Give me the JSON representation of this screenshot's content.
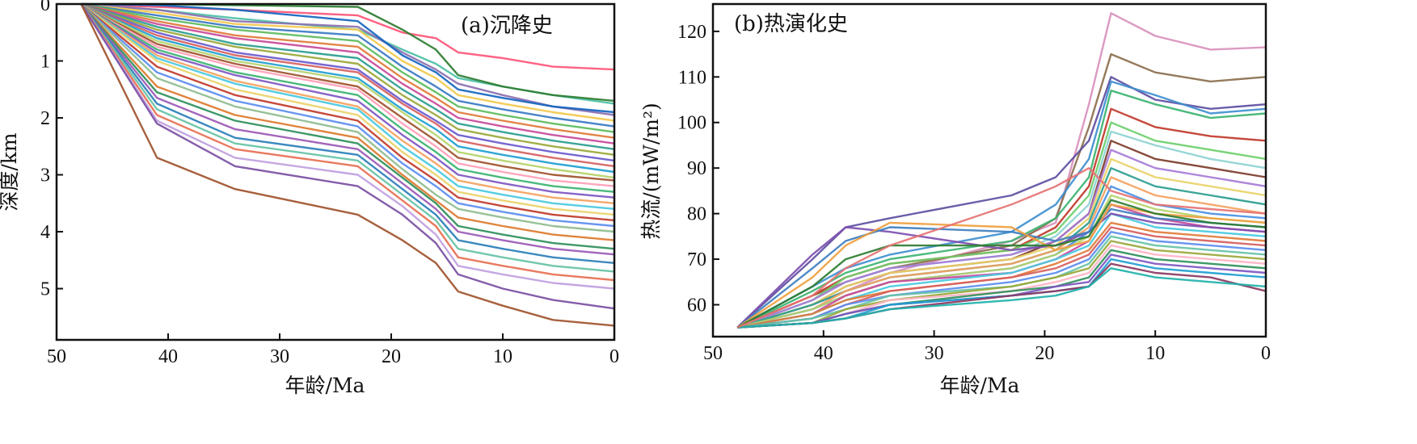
{
  "chart_data": [
    {
      "type": "line",
      "panel_label": "(a)沉降史",
      "xlabel": "年龄/Ma",
      "ylabel": "深度/km",
      "xlim": [
        50,
        0
      ],
      "ylim": [
        0,
        5.9
      ],
      "y_inverted": true,
      "xticks": [
        50,
        40,
        30,
        20,
        10,
        0
      ],
      "yticks": [
        0,
        1,
        2,
        3,
        4,
        5
      ],
      "grid": false,
      "legend": "none",
      "x": [
        47.8,
        41,
        34,
        23,
        19,
        16,
        14,
        10,
        5.5,
        0
      ],
      "series": [
        {
          "color": "#ff5577",
          "values": [
            0,
            0.05,
            0.1,
            0.2,
            0.5,
            0.6,
            0.85,
            0.95,
            1.1,
            1.15
          ]
        },
        {
          "color": "#4cc0a6",
          "values": [
            0,
            0.1,
            0.25,
            0.45,
            0.8,
            1.05,
            1.3,
            1.45,
            1.6,
            1.75
          ]
        },
        {
          "color": "#8b6fb0",
          "values": [
            0,
            0.1,
            0.3,
            0.4,
            0.85,
            1.15,
            1.4,
            1.6,
            1.8,
            1.95
          ]
        },
        {
          "color": "#f2c94c",
          "values": [
            0,
            0.15,
            0.35,
            0.45,
            1.0,
            1.3,
            1.6,
            1.75,
            1.9,
            2.05
          ]
        },
        {
          "color": "#3a79c2",
          "values": [
            0,
            0.2,
            0.4,
            0.55,
            1.1,
            1.45,
            1.7,
            1.85,
            2.0,
            2.15
          ]
        },
        {
          "color": "#5dbb5d",
          "values": [
            0,
            0.25,
            0.45,
            0.65,
            1.2,
            1.55,
            1.8,
            1.95,
            2.1,
            2.25
          ]
        },
        {
          "color": "#e07b39",
          "values": [
            0,
            0.3,
            0.55,
            0.75,
            1.3,
            1.65,
            1.9,
            2.05,
            2.2,
            2.35
          ]
        },
        {
          "color": "#c84a9b",
          "values": [
            0,
            0.35,
            0.6,
            0.85,
            1.4,
            1.75,
            2.0,
            2.15,
            2.3,
            2.45
          ]
        },
        {
          "color": "#2a9d8f",
          "values": [
            0,
            0.4,
            0.7,
            0.95,
            1.5,
            1.85,
            2.1,
            2.25,
            2.4,
            2.55
          ]
        },
        {
          "color": "#9aa83a",
          "values": [
            0,
            0.45,
            0.75,
            1.05,
            1.6,
            1.95,
            2.2,
            2.35,
            2.5,
            2.65
          ]
        },
        {
          "color": "#6a5acd",
          "values": [
            0,
            0.5,
            0.85,
            1.15,
            1.7,
            2.05,
            2.3,
            2.45,
            2.6,
            2.75
          ]
        },
        {
          "color": "#d65f5f",
          "values": [
            0,
            0.55,
            0.9,
            1.2,
            1.75,
            2.1,
            2.4,
            2.55,
            2.7,
            2.85
          ]
        },
        {
          "color": "#1f9ed1",
          "values": [
            0,
            0.6,
            0.95,
            1.3,
            1.85,
            2.2,
            2.5,
            2.65,
            2.8,
            2.95
          ]
        },
        {
          "color": "#b5d36b",
          "values": [
            0,
            0.65,
            1.0,
            1.35,
            1.9,
            2.3,
            2.6,
            2.75,
            2.9,
            3.05
          ]
        },
        {
          "color": "#a0522d",
          "values": [
            0,
            0.7,
            1.05,
            1.45,
            2.0,
            2.4,
            2.7,
            2.85,
            3.0,
            3.1
          ]
        },
        {
          "color": "#ff9fb7",
          "values": [
            0,
            0.75,
            1.1,
            1.5,
            2.1,
            2.5,
            2.8,
            2.95,
            3.1,
            3.2
          ]
        },
        {
          "color": "#3cb371",
          "values": [
            0,
            0.8,
            1.2,
            1.6,
            2.2,
            2.6,
            2.9,
            3.05,
            3.2,
            3.3
          ]
        },
        {
          "color": "#7e57c2",
          "values": [
            0,
            0.85,
            1.25,
            1.7,
            2.3,
            2.7,
            3.0,
            3.15,
            3.3,
            3.4
          ]
        },
        {
          "color": "#f4a261",
          "values": [
            0,
            0.9,
            1.35,
            1.8,
            2.4,
            2.8,
            3.1,
            3.25,
            3.4,
            3.5
          ]
        },
        {
          "color": "#48c9e0",
          "values": [
            0,
            0.95,
            1.4,
            1.85,
            2.5,
            2.9,
            3.2,
            3.35,
            3.5,
            3.6
          ]
        },
        {
          "color": "#e9d36a",
          "values": [
            0,
            1.0,
            1.5,
            1.95,
            2.6,
            3.0,
            3.3,
            3.45,
            3.6,
            3.7
          ]
        },
        {
          "color": "#c0392b",
          "values": [
            0,
            1.1,
            1.6,
            2.05,
            2.7,
            3.1,
            3.4,
            3.55,
            3.7,
            3.8
          ]
        },
        {
          "color": "#5b8def",
          "values": [
            0,
            1.2,
            1.7,
            2.15,
            2.8,
            3.2,
            3.5,
            3.65,
            3.8,
            3.9
          ]
        },
        {
          "color": "#8fbc8f",
          "values": [
            0,
            1.3,
            1.8,
            2.25,
            2.9,
            3.35,
            3.6,
            3.75,
            3.9,
            4.0
          ]
        },
        {
          "color": "#dd7a2e",
          "values": [
            0,
            1.45,
            1.95,
            2.35,
            3.0,
            3.45,
            3.75,
            3.9,
            4.05,
            4.15
          ]
        },
        {
          "color": "#2f8f5b",
          "values": [
            0,
            1.55,
            2.05,
            2.45,
            3.05,
            3.5,
            3.9,
            4.05,
            4.2,
            4.3
          ]
        },
        {
          "color": "#9b59b6",
          "values": [
            0,
            1.65,
            2.2,
            2.55,
            3.15,
            3.6,
            4.0,
            4.15,
            4.3,
            4.4
          ]
        },
        {
          "color": "#2a7fb8",
          "values": [
            0,
            1.75,
            2.35,
            2.65,
            3.25,
            3.7,
            4.15,
            4.3,
            4.45,
            4.55
          ]
        },
        {
          "color": "#66c2a5",
          "values": [
            0,
            1.85,
            2.45,
            2.75,
            3.35,
            3.8,
            4.3,
            4.45,
            4.6,
            4.7
          ]
        },
        {
          "color": "#e76f51",
          "values": [
            0,
            1.95,
            2.55,
            2.85,
            3.45,
            3.9,
            4.45,
            4.6,
            4.75,
            4.85
          ]
        },
        {
          "color": "#c0a0e0",
          "values": [
            0,
            2.05,
            2.7,
            3.0,
            3.55,
            4.05,
            4.6,
            4.75,
            4.9,
            5.0
          ]
        },
        {
          "color": "#7b4fa3",
          "values": [
            0,
            2.1,
            2.85,
            3.2,
            3.7,
            4.2,
            4.75,
            5.0,
            5.2,
            5.35
          ]
        },
        {
          "color": "#a0522d",
          "values": [
            0,
            2.7,
            3.25,
            3.7,
            4.15,
            4.55,
            5.05,
            5.3,
            5.55,
            5.65
          ]
        },
        {
          "color": "#2e7d32",
          "values": [
            0,
            0.0,
            0.02,
            0.05,
            0.45,
            0.8,
            1.25,
            1.45,
            1.6,
            1.7
          ]
        },
        {
          "color": "#1565c0",
          "values": [
            0,
            0.02,
            0.1,
            0.3,
            0.9,
            1.2,
            1.5,
            1.65,
            1.8,
            1.9
          ]
        }
      ]
    },
    {
      "type": "line",
      "panel_label": "(b)热演化史",
      "xlabel": "年龄/Ma",
      "ylabel": "热流/(mW/m²)",
      "xlim": [
        50,
        0
      ],
      "ylim": [
        53,
        126
      ],
      "xticks": [
        50,
        40,
        30,
        20,
        10,
        0
      ],
      "yticks": [
        60,
        70,
        80,
        90,
        100,
        110,
        120
      ],
      "grid": false,
      "legend": "none",
      "x": [
        47.8,
        41,
        38,
        34,
        23,
        19,
        16,
        14,
        10,
        5,
        0
      ],
      "series": [
        {
          "color": "#d991bd",
          "values": [
            55,
            60,
            63,
            67,
            74,
            78,
            104,
            124,
            119,
            116,
            116.5
          ]
        },
        {
          "color": "#8b6f4e",
          "values": [
            55,
            62,
            65,
            68,
            73,
            79,
            99,
            115,
            111,
            109,
            110
          ]
        },
        {
          "color": "#5e4fa2",
          "values": [
            55,
            70,
            77,
            79,
            84,
            88,
            96,
            110,
            105,
            103,
            104
          ]
        },
        {
          "color": "#3f8fcf",
          "values": [
            55,
            64,
            68,
            71,
            76,
            82,
            92,
            109,
            106,
            102,
            103
          ]
        },
        {
          "color": "#3cb371",
          "values": [
            55,
            63,
            67,
            70,
            74,
            79,
            88,
            107,
            104,
            101,
            102
          ]
        },
        {
          "color": "#c0392b",
          "values": [
            55,
            62,
            66,
            69,
            72,
            77,
            86,
            103,
            99,
            97,
            96
          ]
        },
        {
          "color": "#6ccf6c",
          "values": [
            55,
            61,
            66,
            69,
            72,
            76,
            84,
            100,
            96,
            94,
            92
          ]
        },
        {
          "color": "#8fd3d3",
          "values": [
            55,
            61,
            65,
            68,
            71,
            75,
            82,
            98,
            95,
            92,
            90
          ]
        },
        {
          "color": "#7d3c2a",
          "values": [
            55,
            60,
            64,
            67,
            70,
            74,
            80,
            96,
            92,
            90,
            88
          ]
        },
        {
          "color": "#a77bd6",
          "values": [
            55,
            61,
            65,
            68,
            71,
            74,
            80,
            94,
            90,
            88,
            86
          ]
        },
        {
          "color": "#e9d36a",
          "values": [
            55,
            60,
            64,
            67,
            70,
            73,
            79,
            92,
            88,
            86,
            84
          ]
        },
        {
          "color": "#2a9d8f",
          "values": [
            55,
            60,
            63,
            66,
            69,
            72,
            78,
            90,
            86,
            84,
            82
          ]
        },
        {
          "color": "#f4a261",
          "values": [
            55,
            59,
            63,
            66,
            69,
            72,
            77,
            88,
            84,
            82,
            80
          ]
        },
        {
          "color": "#4a90e2",
          "values": [
            55,
            59,
            62,
            65,
            68,
            71,
            76,
            86,
            82,
            80,
            79
          ]
        },
        {
          "color": "#b5d36b",
          "values": [
            55,
            59,
            62,
            65,
            68,
            71,
            75,
            84,
            81,
            79,
            78
          ]
        },
        {
          "color": "#c84a9b",
          "values": [
            55,
            58,
            62,
            65,
            67,
            70,
            74,
            82,
            79,
            77,
            76
          ]
        },
        {
          "color": "#48c9e0",
          "values": [
            55,
            58,
            61,
            64,
            67,
            70,
            73,
            80,
            77,
            76,
            75
          ]
        },
        {
          "color": "#e07b39",
          "values": [
            55,
            58,
            61,
            63,
            66,
            69,
            72,
            78,
            76,
            75,
            74
          ]
        },
        {
          "color": "#d65f5f",
          "values": [
            55,
            57,
            60,
            63,
            66,
            68,
            71,
            77,
            75,
            74,
            73
          ]
        },
        {
          "color": "#5b8def",
          "values": [
            55,
            57,
            60,
            62,
            65,
            67,
            70,
            76,
            74,
            73,
            72
          ]
        },
        {
          "color": "#66c2a5",
          "values": [
            55,
            57,
            59,
            62,
            64,
            66,
            69,
            75,
            73,
            72,
            71
          ]
        },
        {
          "color": "#9aa83a",
          "values": [
            55,
            56,
            59,
            61,
            64,
            66,
            68,
            74,
            72,
            71,
            70
          ]
        },
        {
          "color": "#ffb3c6",
          "values": [
            55,
            56,
            58,
            61,
            63,
            65,
            67,
            73,
            71,
            70,
            69
          ]
        },
        {
          "color": "#2f8f5b",
          "values": [
            55,
            56,
            58,
            60,
            63,
            64,
            66,
            72,
            70,
            69,
            68
          ]
        },
        {
          "color": "#7e57c2",
          "values": [
            55,
            56,
            58,
            60,
            62,
            64,
            65,
            71,
            69,
            68,
            67
          ]
        },
        {
          "color": "#1f9ed1",
          "values": [
            55,
            56,
            57,
            60,
            62,
            63,
            64,
            70,
            68,
            67,
            66
          ]
        },
        {
          "color": "#8b3a62",
          "values": [
            55,
            56,
            57,
            59,
            62,
            63,
            64,
            69,
            67,
            66,
            63
          ]
        },
        {
          "color": "#20b2aa",
          "values": [
            55,
            56,
            57,
            59,
            61,
            62,
            64,
            68,
            66,
            65,
            64
          ]
        },
        {
          "color": "#7d4fb0",
          "values": [
            55,
            71,
            77,
            76,
            72,
            73,
            76,
            80,
            78,
            77,
            76
          ]
        },
        {
          "color": "#3f7fbf",
          "values": [
            55,
            68,
            74,
            77,
            76,
            74,
            76,
            81,
            79,
            78,
            77
          ]
        },
        {
          "color": "#f0a040",
          "values": [
            55,
            66,
            73,
            78,
            77,
            72,
            74,
            82,
            80,
            79,
            78
          ]
        },
        {
          "color": "#2e7d32",
          "values": [
            55,
            64,
            70,
            73,
            73,
            73,
            75,
            83,
            80,
            78,
            77
          ]
        },
        {
          "color": "#e57373",
          "values": [
            55,
            62,
            68,
            73,
            82,
            86,
            90,
            85,
            82,
            81,
            80
          ]
        }
      ]
    }
  ]
}
